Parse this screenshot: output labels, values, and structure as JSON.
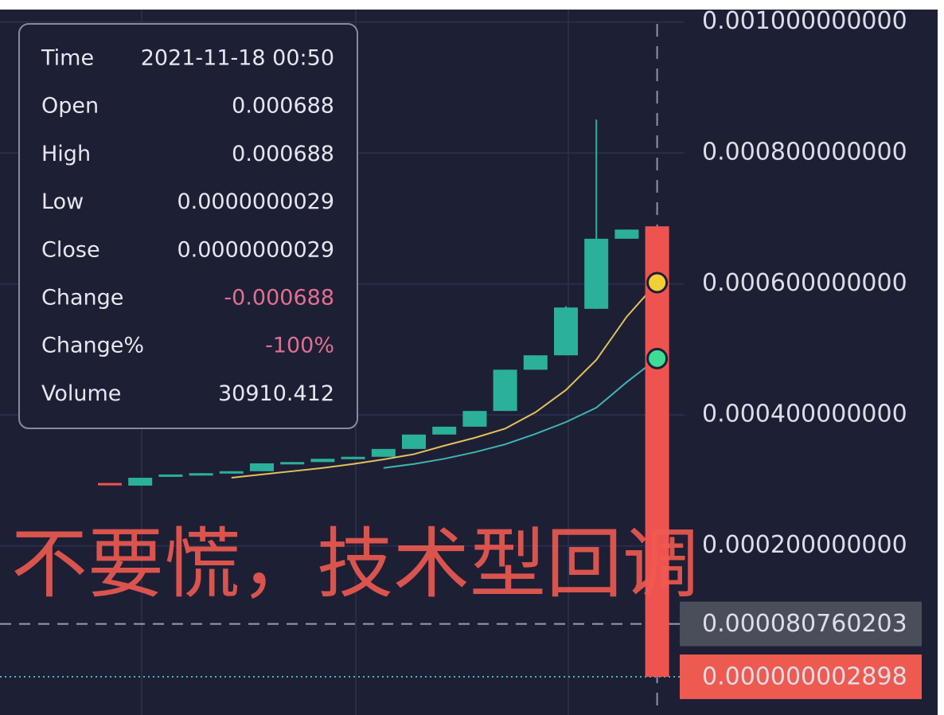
{
  "chart_data": {
    "type": "candlestick",
    "categories": [
      null,
      null,
      null,
      null,
      null,
      null,
      null,
      null,
      null,
      null,
      null,
      null,
      null,
      null,
      null,
      null,
      null,
      null,
      null
    ],
    "candles": {
      "open": [
        0.000296,
        0.000292,
        0.000306,
        0.000309,
        0.000311,
        0.000314,
        0.000326,
        0.000328,
        0.000333,
        0.000336,
        0.000348,
        0.00037,
        0.000382,
        0.000406,
        0.000469,
        0.000491,
        0.000562,
        0.000669,
        0.000688
      ],
      "high": [
        0.000296,
        0.000304,
        0.000309,
        0.000311,
        0.000314,
        0.000326,
        0.000328,
        0.000333,
        0.000336,
        0.000348,
        0.00037,
        0.000382,
        0.000406,
        0.000469,
        0.000491,
        0.000566,
        0.000851,
        0.000683,
        0.000688
      ],
      "low": [
        0.000295,
        0.000292,
        0.000306,
        0.000309,
        0.000311,
        0.000314,
        0.000326,
        0.000328,
        0.000333,
        0.000336,
        0.000348,
        0.00037,
        0.000382,
        0.000406,
        0.000469,
        0.000491,
        0.000562,
        0.000669,
        2.9e-09
      ],
      "close": [
        0.000295,
        0.000304,
        0.000309,
        0.000311,
        0.000314,
        0.000326,
        0.000328,
        0.000333,
        0.000336,
        0.000348,
        0.00037,
        0.000382,
        0.000406,
        0.000469,
        0.000491,
        0.000564,
        0.000669,
        0.000683,
        2.9e-09
      ],
      "up_color": "#2bb09b",
      "down_color": "#ef5350"
    },
    "moving_averages": [
      {
        "color": "#e2c15a",
        "marker_color": "#f2d034",
        "values": [
          null,
          null,
          null,
          null,
          0.000304,
          0.000309,
          0.000314,
          0.000319,
          0.000325,
          0.000332,
          0.00034,
          0.000353,
          0.000365,
          0.000379,
          0.000404,
          0.000438,
          0.000484,
          0.00055,
          0.000602
        ]
      },
      {
        "color": "#3fb5b0",
        "marker_color": "#3ddc97",
        "values": [
          null,
          null,
          null,
          null,
          null,
          null,
          null,
          null,
          null,
          0.000319,
          0.000325,
          0.000333,
          0.000343,
          0.000355,
          0.000371,
          0.000389,
          0.000411,
          0.00045,
          0.000486
        ]
      }
    ],
    "ylim": [
      -5.83e-05,
      0.001019
    ],
    "yticks": [
      {
        "value": 0.0002,
        "label": "0.000200000000"
      },
      {
        "value": 0.0004,
        "label": "0.000400000000"
      },
      {
        "value": 0.0006,
        "label": "0.000600000000"
      },
      {
        "value": 0.0008,
        "label": "0.000800000000"
      },
      {
        "value": 0.001,
        "label": "0.001000000000"
      }
    ],
    "grid": true,
    "crosshair_index": 18,
    "price_lines": [
      {
        "value": 8.0760203e-05,
        "label": "0.000080760203",
        "color": "#4a4e5a",
        "line_color": "#9a9cab",
        "style": "dashed"
      },
      {
        "value": 2.898e-09,
        "label": "0.000000002898",
        "color": "#ee5a50",
        "line_color": "#4fb3b8",
        "style": "dotted"
      }
    ],
    "tooltip": [
      {
        "label": "Time",
        "value": "2021-11-18 00:50"
      },
      {
        "label": "Open",
        "value": "0.000688"
      },
      {
        "label": "High",
        "value": "0.000688"
      },
      {
        "label": "Low",
        "value": "0.0000000029"
      },
      {
        "label": "Close",
        "value": "0.0000000029"
      },
      {
        "label": "Change",
        "value": "-0.000688",
        "negative": true
      },
      {
        "label": "Change%",
        "value": "-100%",
        "negative": true
      },
      {
        "label": "Volume",
        "value": "30910.412"
      }
    ],
    "annotation": "不要慌，技术型回调"
  }
}
